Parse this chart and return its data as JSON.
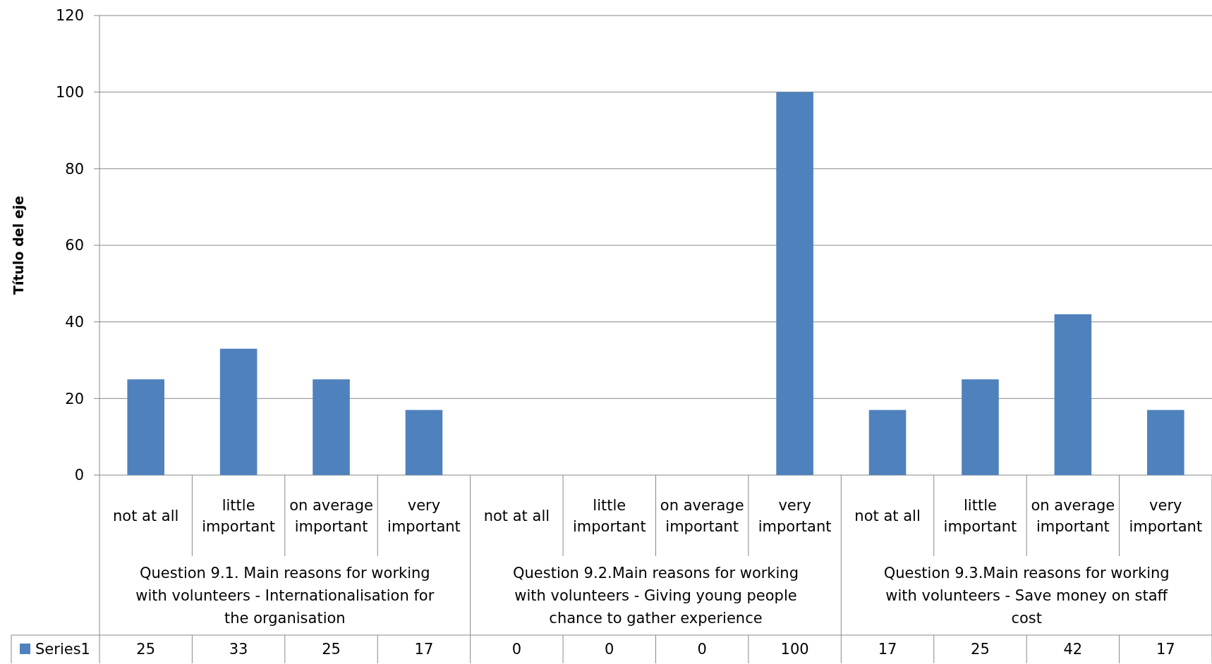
{
  "chart_data": {
    "type": "bar",
    "ylabel": "Título del eje",
    "categories": [
      "not at all",
      "little important",
      "on average important",
      "very important",
      "not at all",
      "little important",
      "on average important",
      "very important",
      "not at all",
      "little important",
      "on average important",
      "very important"
    ],
    "annotations": [
      "Question 9.1. Main reasons for working with volunteers - Internationalisation for the organisation",
      "Question 9.2.Main reasons for working with volunteers - Giving young people chance to gather experience",
      "Question 9.3.Main reasons for working with volunteers - Save money on staff cost"
    ],
    "series": [
      {
        "name": "Series1",
        "color": "#4f81bd",
        "values": [
          25,
          33,
          25,
          17,
          0,
          0,
          0,
          100,
          17,
          25,
          42,
          17
        ]
      }
    ],
    "ylim": [
      0,
      120
    ],
    "yticks": [
      0,
      20,
      40,
      60,
      80,
      100,
      120
    ],
    "grid": "y",
    "data_labels": true,
    "legend": "bottom"
  }
}
